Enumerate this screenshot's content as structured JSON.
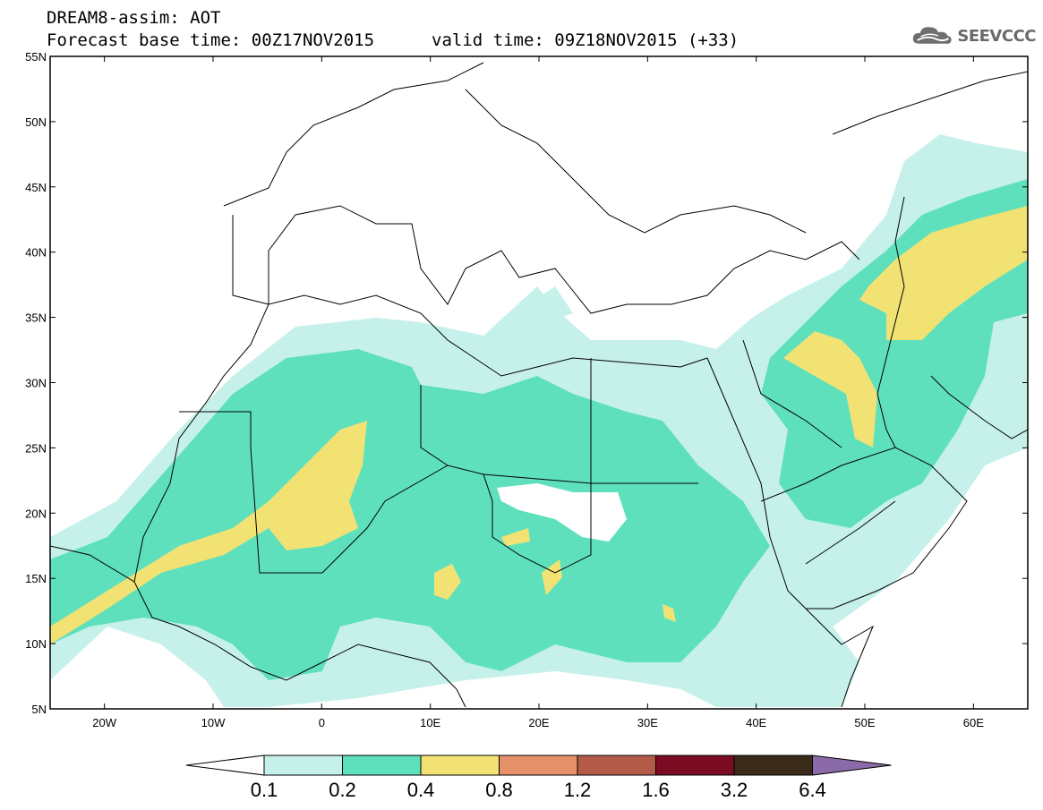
{
  "header": {
    "model_line": "DREAM8-assim: AOT",
    "base_time": "Forecast base time: 00Z17NOV2015",
    "valid_time": "valid time: 09Z18NOV2015 (+33)"
  },
  "logo": {
    "text": "SEEVCCC",
    "icon": "cloud-icon"
  },
  "lat_labels": [
    "55N",
    "50N",
    "45N",
    "40N",
    "35N",
    "30N",
    "25N",
    "20N",
    "15N",
    "10N",
    "5N"
  ],
  "lon_labels": [
    "20W",
    "10W",
    "0",
    "10E",
    "20E",
    "30E",
    "40E",
    "50E",
    "60E"
  ],
  "colorbar": {
    "labels": [
      "0.1",
      "0.2",
      "0.4",
      "0.8",
      "1.2",
      "1.6",
      "3.2",
      "6.4"
    ],
    "colors": [
      "#ffffff",
      "#c6f1ea",
      "#5fe0bc",
      "#f2e274",
      "#e7916b",
      "#b45a49",
      "#7b0b23",
      "#3a2a19",
      "#8a6aa8"
    ]
  },
  "map_extent": {
    "lon": [
      -25,
      65
    ],
    "lat": [
      5,
      55
    ]
  }
}
